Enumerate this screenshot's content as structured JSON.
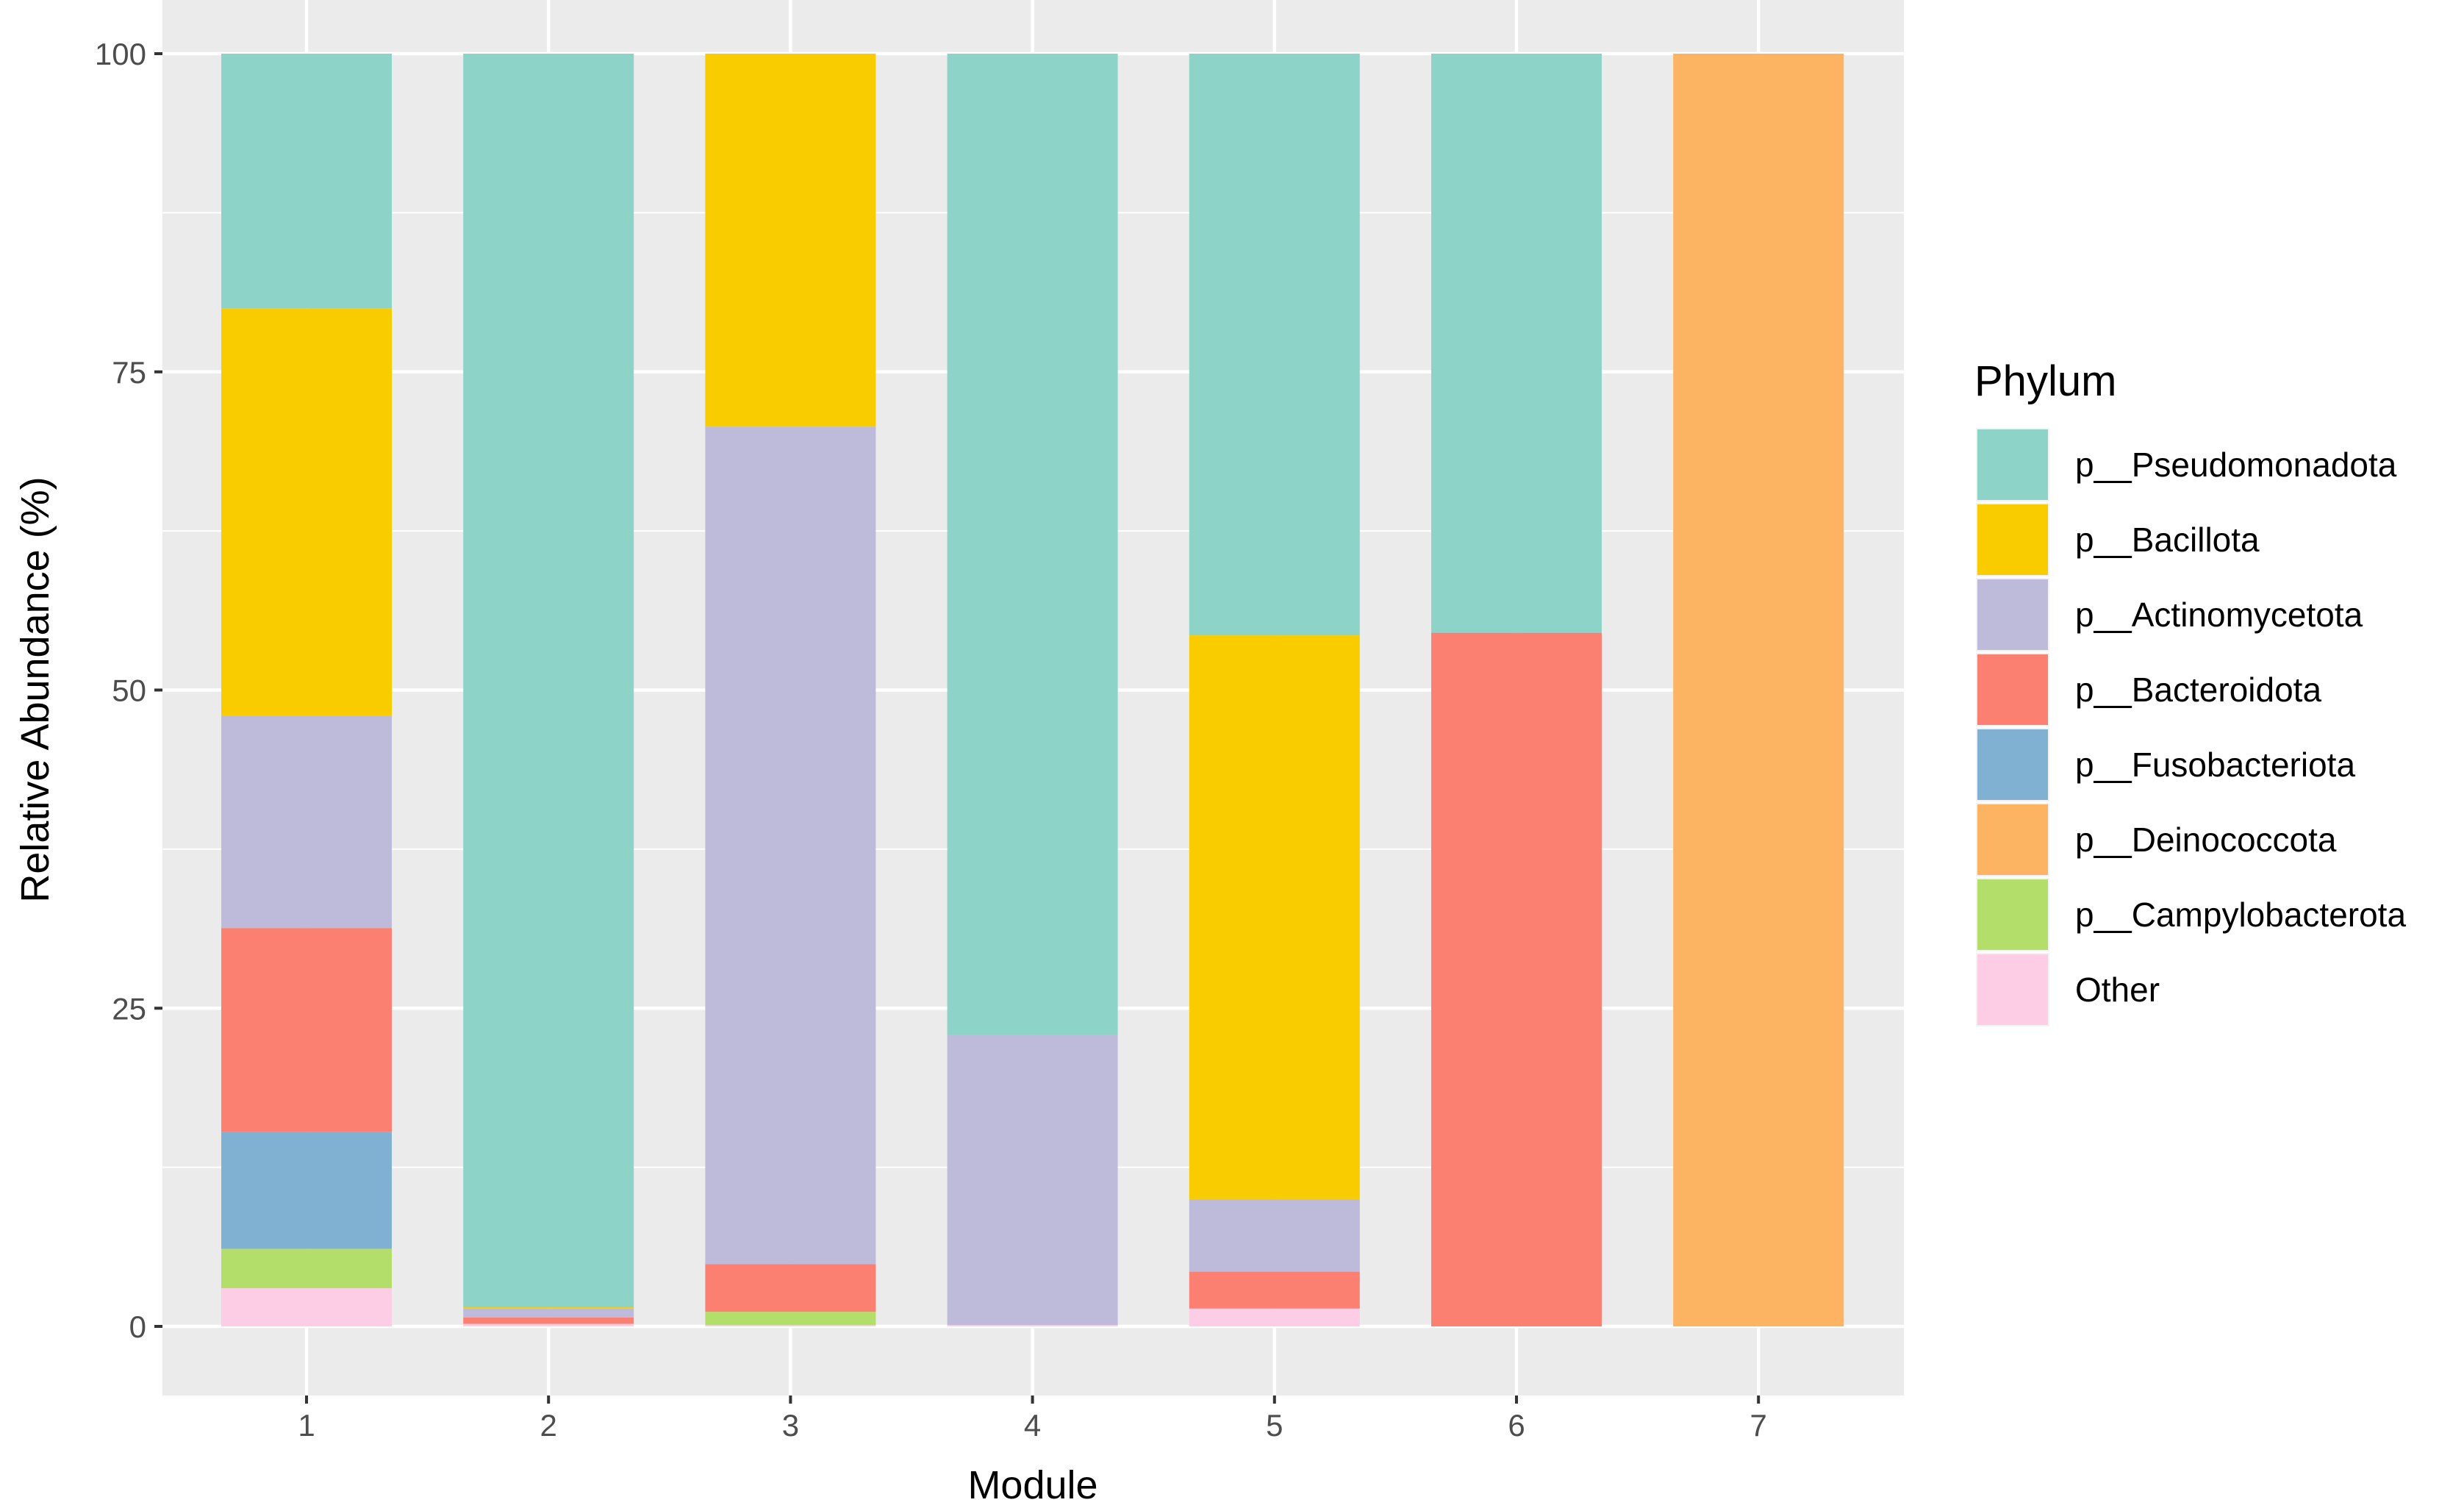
{
  "chart_data": {
    "type": "bar",
    "stacked": true,
    "xlabel": "Module",
    "ylabel": "Relative Abundance (%)",
    "ylim": [
      0,
      100
    ],
    "yticks": [
      0,
      25,
      50,
      75,
      100
    ],
    "grid": true,
    "legend_title": "Phylum",
    "legend_position": "right",
    "categories": [
      "1",
      "2",
      "3",
      "4",
      "5",
      "6",
      "7"
    ],
    "series": [
      {
        "name": "Other",
        "color": "#FCCDE5",
        "values": [
          3.0,
          0.2,
          0.1,
          0.1,
          1.4,
          0.0,
          0.0
        ]
      },
      {
        "name": "p__Campylobacterota",
        "color": "#B3DE69",
        "values": [
          3.1,
          0.0,
          1.05,
          0.0,
          0.0,
          0.0,
          0.0
        ]
      },
      {
        "name": "p__Deinococcota",
        "color": "#FDB462",
        "values": [
          0.0,
          0.0,
          0.0,
          0.0,
          0.0,
          0.0,
          100.0
        ]
      },
      {
        "name": "p__Fusobacteriota",
        "color": "#80B1D3",
        "values": [
          9.2,
          0.0,
          0.0,
          0.0,
          0.0,
          0.0,
          0.0
        ]
      },
      {
        "name": "p__Bacteroidota",
        "color": "#FB8072",
        "values": [
          16.0,
          0.5,
          3.75,
          0.0,
          2.9,
          54.5,
          0.0
        ]
      },
      {
        "name": "p__Actinomycetota",
        "color": "#BEBADA",
        "values": [
          16.7,
          0.7,
          65.8,
          22.8,
          5.7,
          0.0,
          0.0
        ]
      },
      {
        "name": "p__Bacillota",
        "color": "#F9CC00",
        "values": [
          32.0,
          0.1,
          29.3,
          0.0,
          44.3,
          0.0,
          0.0
        ]
      },
      {
        "name": "p__Pseudomonadota",
        "color": "#8DD3C7",
        "values": [
          20.0,
          98.5,
          0.0,
          77.1,
          45.7,
          45.5,
          0.0
        ]
      }
    ],
    "legend_order": [
      "p__Pseudomonadota",
      "p__Bacillota",
      "p__Actinomycetota",
      "p__Bacteroidota",
      "p__Fusobacteriota",
      "p__Deinococcota",
      "p__Campylobacterota",
      "Other"
    ],
    "panel_background": "#EBEBEB"
  }
}
